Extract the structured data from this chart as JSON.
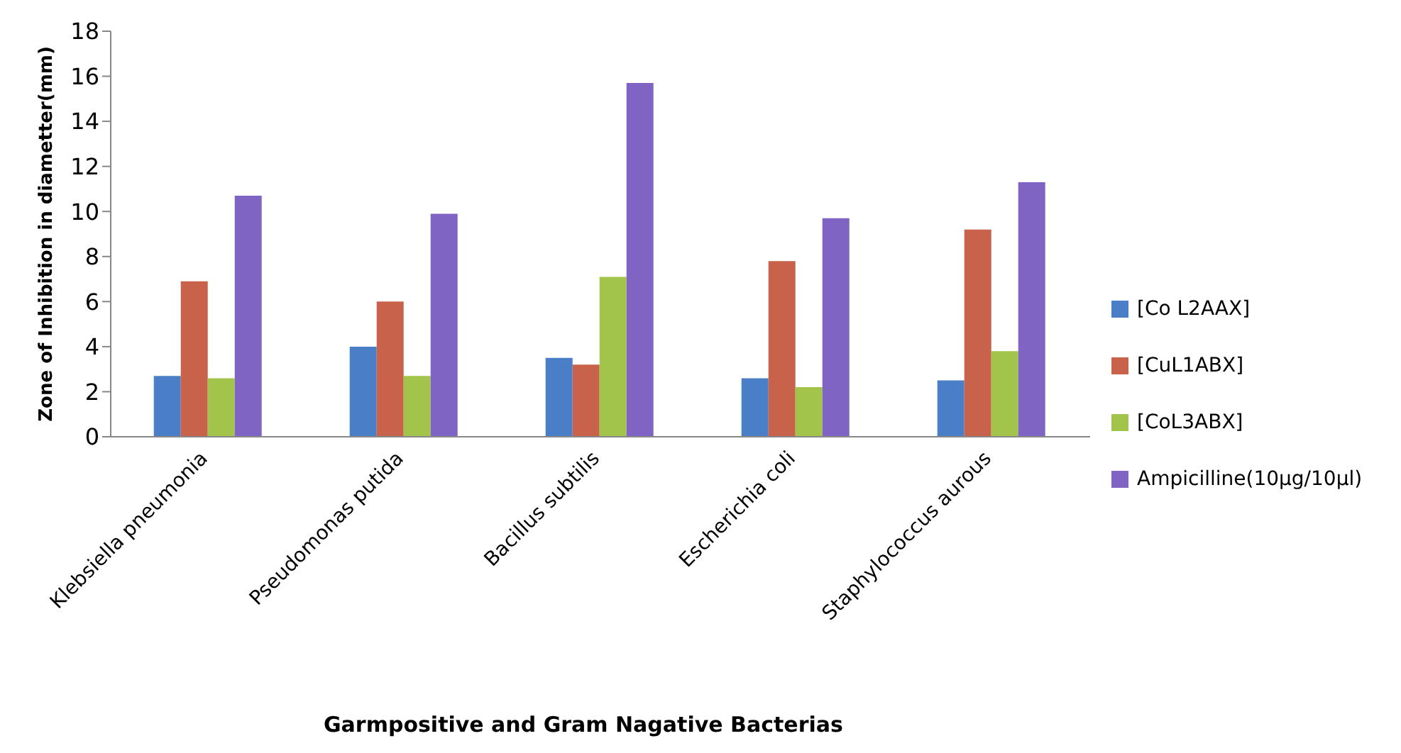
{
  "chart_data": {
    "type": "bar",
    "xlabel": "Garmpositive and Gram Nagative Bacterias",
    "ylabel": "Zone of Inhibition in diametter(mm)",
    "categories": [
      "Klebsiella pneumonia",
      "Pseudomonas putida",
      "Bacillus subtilis",
      "Escherichia coli",
      "Staphylococcus aurous"
    ],
    "series": [
      {
        "name": "[Co L2AAX]",
        "color": "#4a7ec6",
        "values": [
          2.7,
          4.0,
          3.5,
          2.6,
          2.5
        ]
      },
      {
        "name": "[CuL1ABX]",
        "color": "#c8624a",
        "values": [
          6.9,
          6.0,
          3.2,
          7.8,
          9.2
        ]
      },
      {
        "name": "[CoL3ABX]",
        "color": "#a3c44a",
        "values": [
          2.6,
          2.7,
          7.1,
          2.2,
          3.8
        ]
      },
      {
        "name": "Ampicilline(10µg/10µl)",
        "color": "#8064c4",
        "values": [
          10.7,
          9.9,
          15.7,
          9.7,
          11.3
        ]
      }
    ],
    "ylim": [
      0,
      18
    ],
    "yticks": [
      0,
      2,
      4,
      6,
      8,
      10,
      12,
      14,
      16,
      18
    ],
    "grid": false,
    "legend": "right"
  }
}
